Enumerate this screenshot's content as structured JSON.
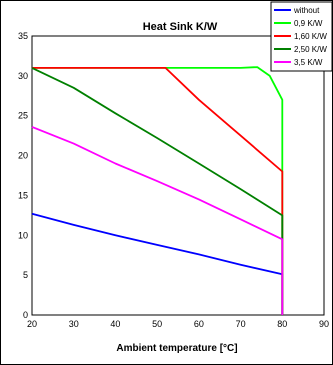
{
  "chart_data": {
    "type": "line",
    "title": "Heat Sink K/W",
    "xlabel": "Ambient temperature [°C]",
    "ylabel": "",
    "xlim": [
      20,
      90
    ],
    "ylim": [
      0,
      35
    ],
    "x_ticks": [
      "20",
      "30",
      "40",
      "50",
      "60",
      "70",
      "80",
      "90"
    ],
    "y_ticks": [
      "0",
      "5",
      "10",
      "15",
      "20",
      "25",
      "30",
      "35"
    ],
    "grid": true,
    "legend_position": "top-right",
    "series": [
      {
        "name": "without",
        "color": "#0000ff",
        "points": [
          [
            20,
            12.7
          ],
          [
            30,
            11.3
          ],
          [
            40,
            10.0
          ],
          [
            50,
            8.8
          ],
          [
            55,
            8.2
          ],
          [
            60,
            7.6
          ],
          [
            70,
            6.3
          ],
          [
            80,
            5.1
          ],
          [
            80,
            0
          ]
        ]
      },
      {
        "name": "0,9 K/W",
        "color": "#00ff00",
        "points": [
          [
            20,
            31.0
          ],
          [
            50,
            31.0
          ],
          [
            60,
            31.0
          ],
          [
            70,
            31.0
          ],
          [
            74,
            31.1
          ],
          [
            77,
            30.0
          ],
          [
            80,
            27.0
          ],
          [
            80,
            0
          ]
        ]
      },
      {
        "name": "1,60 K/W",
        "color": "#ff0000",
        "points": [
          [
            20,
            31.0
          ],
          [
            52,
            31.0
          ],
          [
            60,
            27.0
          ],
          [
            70,
            22.5
          ],
          [
            80,
            18.0
          ],
          [
            80,
            0
          ]
        ]
      },
      {
        "name": "2,50 K/W",
        "color": "#008000",
        "points": [
          [
            20,
            31.0
          ],
          [
            30,
            28.5
          ],
          [
            40,
            25.3
          ],
          [
            50,
            22.2
          ],
          [
            60,
            19.0
          ],
          [
            70,
            15.8
          ],
          [
            80,
            12.5
          ],
          [
            80,
            0
          ]
        ]
      },
      {
        "name": "3,5 K/W",
        "color": "#ff00ff",
        "points": [
          [
            20,
            23.6
          ],
          [
            30,
            21.5
          ],
          [
            40,
            19.0
          ],
          [
            50,
            16.8
          ],
          [
            60,
            14.5
          ],
          [
            70,
            12.0
          ],
          [
            80,
            9.5
          ],
          [
            80,
            0
          ]
        ]
      }
    ]
  }
}
